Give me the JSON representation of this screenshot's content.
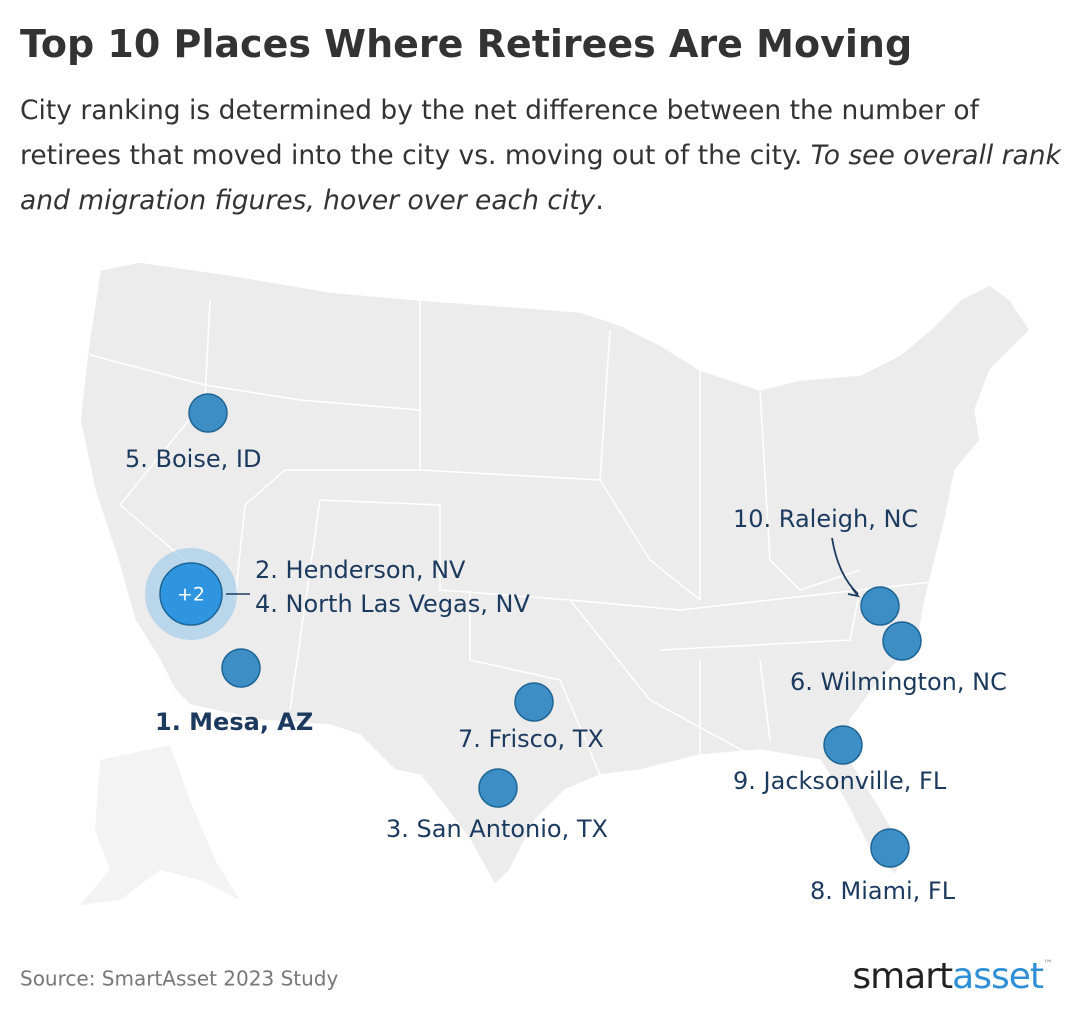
{
  "header": {
    "title": "Top 10 Places Where Retirees Are Moving",
    "subtitle": [
      "City ranking is determined by the net difference between the number of retirees that moved into the city vs. moving out of the city. ",
      "To see overall rank and migration figures, hover over each city",
      "."
    ]
  },
  "map": {
    "cluster_label": "+2",
    "cities": [
      "1. Mesa, AZ",
      "2. Henderson, NV",
      "3. San Antonio, TX",
      "4. North Las Vegas, NV",
      "5. Boise, ID",
      "6. Wilmington, NC",
      "7. Frisco, TX",
      "8. Miami, FL",
      "9. Jacksonville, FL",
      "10. Raleigh, NC"
    ]
  },
  "footer": {
    "source": "Source: SmartAsset 2023 Study",
    "logo": [
      "smart",
      "asset",
      "™"
    ]
  }
}
